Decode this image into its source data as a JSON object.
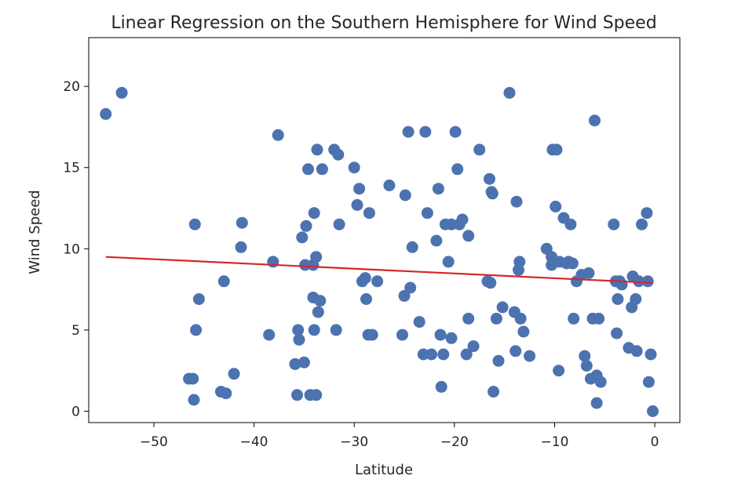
{
  "chart_data": {
    "type": "scatter",
    "title": "Linear Regression on the Southern Hemisphere for Wind Speed",
    "xlabel": "Latitude",
    "ylabel": "Wind Speed",
    "xlim": [
      -56.5,
      2.5
    ],
    "ylim": [
      -0.7,
      23.0
    ],
    "xticks": [
      -50,
      -40,
      -30,
      -20,
      -10,
      0
    ],
    "xtick_labels": [
      "−50",
      "−40",
      "−30",
      "−20",
      "−10",
      "0"
    ],
    "yticks": [
      0,
      5,
      10,
      15,
      20
    ],
    "ytick_labels": [
      "0",
      "5",
      "10",
      "15",
      "20"
    ],
    "grid": false,
    "legend": "none",
    "colors": {
      "points": "#4c72b0",
      "regression_line": "#d62728",
      "axes": "#000000"
    },
    "series": [
      {
        "type": "scatter",
        "x": [
          -54.8,
          -53.2,
          -46.5,
          -46.0,
          -46.1,
          -45.9,
          -45.8,
          -45.5,
          -43.3,
          -42.8,
          -43.0,
          -42.0,
          -41.3,
          -41.2,
          -38.5,
          -38.1,
          -37.6,
          -35.9,
          -35.7,
          -35.6,
          -35.5,
          -35.2,
          -35.0,
          -34.8,
          -34.9,
          -34.6,
          -34.4,
          -34.1,
          -34.1,
          -34.0,
          -34.0,
          -33.8,
          -33.8,
          -33.6,
          -33.7,
          -33.4,
          -33.2,
          -32.0,
          -31.8,
          -31.6,
          -31.5,
          -30.0,
          -29.7,
          -29.5,
          -29.2,
          -28.9,
          -28.8,
          -28.6,
          -28.5,
          -28.2,
          -27.7,
          -26.5,
          -25.2,
          -25.0,
          -24.9,
          -24.6,
          -24.4,
          -24.2,
          -23.5,
          -23.1,
          -22.9,
          -22.7,
          -22.3,
          -21.8,
          -21.6,
          -21.4,
          -21.3,
          -21.1,
          -20.9,
          -20.6,
          -20.3,
          -20.3,
          -19.9,
          -19.7,
          -19.5,
          -19.2,
          -18.8,
          -18.6,
          -18.6,
          -18.1,
          -17.5,
          -16.7,
          -16.5,
          -16.4,
          -16.3,
          -16.2,
          -16.1,
          -15.8,
          -15.6,
          -15.2,
          -14.5,
          -14.0,
          -13.9,
          -13.8,
          -13.6,
          -13.5,
          -13.4,
          -13.1,
          -12.5,
          -10.8,
          -10.3,
          -10.3,
          -10.2,
          -9.9,
          -9.8,
          -9.6,
          -9.5,
          -9.1,
          -8.8,
          -8.6,
          -8.4,
          -8.2,
          -8.1,
          -7.8,
          -7.3,
          -7.0,
          -6.8,
          -6.6,
          -6.4,
          -6.2,
          -6.0,
          -5.8,
          -5.8,
          -5.6,
          -5.4,
          -4.1,
          -3.9,
          -3.8,
          -3.7,
          -3.5,
          -3.3,
          -2.6,
          -2.3,
          -2.2,
          -1.9,
          -1.8,
          -1.6,
          -1.3,
          -0.8,
          -0.7,
          -0.6,
          -0.4,
          -0.2
        ],
        "y": [
          18.3,
          19.6,
          2.0,
          0.7,
          2.0,
          11.5,
          5.0,
          6.9,
          1.2,
          1.1,
          8.0,
          2.3,
          10.1,
          11.6,
          4.7,
          9.2,
          17.0,
          2.9,
          1.0,
          5.0,
          4.4,
          10.7,
          3.0,
          11.4,
          9.0,
          14.9,
          1.0,
          7.0,
          9.0,
          12.2,
          5.0,
          9.5,
          1.0,
          6.1,
          16.1,
          6.8,
          14.9,
          16.1,
          5.0,
          15.8,
          11.5,
          15.0,
          12.7,
          13.7,
          8.0,
          8.2,
          6.9,
          4.7,
          12.2,
          4.7,
          8.0,
          13.9,
          4.7,
          7.1,
          13.3,
          17.2,
          7.6,
          10.1,
          5.5,
          3.5,
          17.2,
          12.2,
          3.5,
          10.5,
          13.7,
          4.7,
          1.5,
          3.5,
          11.5,
          9.2,
          4.5,
          11.5,
          17.2,
          14.9,
          11.5,
          11.8,
          3.5,
          10.8,
          5.7,
          4.0,
          16.1,
          8.0,
          14.3,
          7.9,
          13.5,
          13.4,
          1.2,
          5.7,
          3.1,
          6.4,
          19.6,
          6.1,
          3.7,
          12.9,
          8.7,
          9.2,
          5.7,
          4.9,
          3.4,
          10.0,
          9.5,
          9.0,
          16.1,
          12.6,
          16.1,
          2.5,
          9.2,
          11.9,
          9.1,
          9.2,
          11.5,
          9.1,
          5.7,
          8.0,
          8.4,
          3.4,
          2.8,
          8.5,
          2.0,
          5.7,
          17.9,
          2.2,
          0.5,
          5.7,
          1.8,
          11.5,
          8.0,
          4.8,
          6.9,
          8.0,
          7.8,
          3.9,
          6.4,
          8.3,
          6.9,
          3.7,
          8.0,
          11.5,
          12.2,
          8.0,
          1.8,
          3.5,
          0.0
        ]
      },
      {
        "type": "line",
        "x": [
          -54.8,
          -0.2
        ],
        "y": [
          9.5,
          7.9
        ]
      }
    ]
  }
}
